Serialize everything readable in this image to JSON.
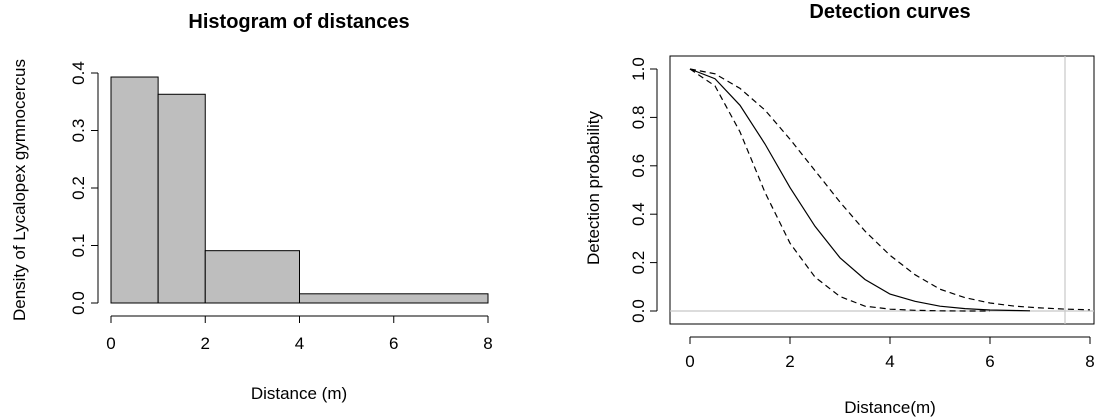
{
  "chart_data": [
    {
      "type": "bar",
      "title": "Histogram of distances",
      "xlabel": "Distance (m)",
      "ylabel": "Density of Lycalopex gymnocercus",
      "bins": [
        {
          "start": 0,
          "end": 1,
          "value": 0.393
        },
        {
          "start": 1,
          "end": 2,
          "value": 0.363
        },
        {
          "start": 2,
          "end": 4,
          "value": 0.091
        },
        {
          "start": 4,
          "end": 8,
          "value": 0.016
        }
      ],
      "xlim": [
        0,
        8
      ],
      "ylim": [
        0,
        0.4
      ],
      "xticks": [
        "0",
        "2",
        "4",
        "6",
        "8"
      ],
      "xtick_values": [
        0,
        2,
        4,
        6,
        8
      ],
      "yticks": [
        "0.0",
        "0.1",
        "0.2",
        "0.3",
        "0.4"
      ],
      "ytick_values": [
        0,
        0.1,
        0.2,
        0.3,
        0.4
      ]
    },
    {
      "type": "line",
      "title": "Detection curves",
      "xlabel": "Distance(m)",
      "ylabel": "Detection probability",
      "xlim": [
        0,
        8
      ],
      "ylim": [
        0,
        1
      ],
      "xticks": [
        "0",
        "2",
        "4",
        "6",
        "8"
      ],
      "xtick_values": [
        0,
        2,
        4,
        6,
        8
      ],
      "yticks": [
        "0.0",
        "0.2",
        "0.4",
        "0.6",
        "0.8",
        "1.0"
      ],
      "ytick_values": [
        0,
        0.2,
        0.4,
        0.6,
        0.8,
        1.0
      ],
      "series": [
        {
          "style": "solid",
          "color": "#000000",
          "x": [
            0,
            0.5,
            1,
            1.5,
            2,
            2.5,
            3,
            3.5,
            4,
            4.5,
            5,
            5.5,
            6,
            6.5,
            6.8
          ],
          "y": [
            1.0,
            0.96,
            0.85,
            0.69,
            0.51,
            0.35,
            0.22,
            0.13,
            0.07,
            0.04,
            0.02,
            0.01,
            0.004,
            0.002,
            0.001
          ]
        },
        {
          "style": "dashed",
          "color": "#000000",
          "x": [
            0,
            0.5,
            1,
            1.5,
            2,
            2.5,
            3,
            3.5,
            4,
            4.5,
            5,
            5.5,
            6
          ],
          "y": [
            1.0,
            0.93,
            0.74,
            0.49,
            0.28,
            0.14,
            0.06,
            0.02,
            0.008,
            0.003,
            0.001,
            0.0,
            0.0
          ]
        },
        {
          "style": "dashed",
          "color": "#000000",
          "x": [
            0,
            0.5,
            1,
            1.5,
            2,
            2.5,
            3,
            3.5,
            4,
            4.5,
            5,
            5.5,
            6,
            6.5,
            7,
            7.5,
            8
          ],
          "y": [
            1.0,
            0.98,
            0.92,
            0.83,
            0.71,
            0.58,
            0.45,
            0.33,
            0.23,
            0.15,
            0.09,
            0.055,
            0.033,
            0.02,
            0.013,
            0.008,
            0.005
          ]
        }
      ],
      "reference_lines": {
        "vertical_x": 7.5,
        "horizontal_y": 0,
        "color": "#c8c8c8"
      }
    }
  ]
}
